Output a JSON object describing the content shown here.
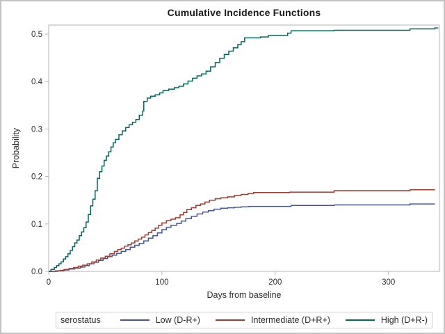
{
  "figure": {
    "title": "Cumulative Incidence Functions",
    "xlabel": "Days from baseline",
    "ylabel": "Probability"
  },
  "legend": {
    "title": "serostatus",
    "items": [
      {
        "label": "Low (D-R+)",
        "color": "#445694"
      },
      {
        "label": "Intermediate (D+R+)",
        "color": "#A23A2E"
      },
      {
        "label": "High (D+R-)",
        "color": "#01665E"
      }
    ]
  },
  "chart_data": {
    "type": "line",
    "subtype": "step-after",
    "title": "Cumulative Incidence Functions",
    "xlabel": "Days from baseline",
    "ylabel": "Probability",
    "xlim": [
      0,
      345
    ],
    "ylim": [
      0,
      0.519
    ],
    "xticks": [
      0,
      100,
      200,
      300
    ],
    "yticks": [
      0.0,
      0.1,
      0.2,
      0.3,
      0.4,
      0.5
    ],
    "grid": false,
    "legend_position": "bottom",
    "frame_color": "#b5b5b5",
    "tick_text_color": "#2b2b2b",
    "series": [
      {
        "name": "Low (D-R+)",
        "color": "#445694",
        "points": [
          [
            0,
            0
          ],
          [
            8,
            0.001
          ],
          [
            13,
            0.003
          ],
          [
            18,
            0.005
          ],
          [
            23,
            0.007
          ],
          [
            28,
            0.009
          ],
          [
            32,
            0.012
          ],
          [
            36,
            0.016
          ],
          [
            40,
            0.019
          ],
          [
            44,
            0.023
          ],
          [
            48,
            0.027
          ],
          [
            52,
            0.031
          ],
          [
            56,
            0.034
          ],
          [
            60,
            0.038
          ],
          [
            64,
            0.042
          ],
          [
            68,
            0.046
          ],
          [
            72,
            0.051
          ],
          [
            76,
            0.055
          ],
          [
            80,
            0.059
          ],
          [
            84,
            0.064
          ],
          [
            88,
            0.07
          ],
          [
            92,
            0.075
          ],
          [
            96,
            0.081
          ],
          [
            100,
            0.088
          ],
          [
            104,
            0.093
          ],
          [
            108,
            0.097
          ],
          [
            113,
            0.101
          ],
          [
            117,
            0.106
          ],
          [
            121,
            0.111
          ],
          [
            126,
            0.116
          ],
          [
            131,
            0.121
          ],
          [
            136,
            0.125
          ],
          [
            141,
            0.128
          ],
          [
            146,
            0.131
          ],
          [
            152,
            0.133
          ],
          [
            158,
            0.134
          ],
          [
            164,
            0.135
          ],
          [
            170,
            0.136
          ],
          [
            177,
            0.137
          ],
          [
            214,
            0.139
          ],
          [
            252,
            0.14
          ],
          [
            319,
            0.142
          ],
          [
            341,
            0.142
          ]
        ]
      },
      {
        "name": "Intermediate (D+R+)",
        "color": "#A23A2E",
        "points": [
          [
            0,
            0
          ],
          [
            6,
            0.001
          ],
          [
            10,
            0.002
          ],
          [
            14,
            0.004
          ],
          [
            18,
            0.006
          ],
          [
            22,
            0.008
          ],
          [
            26,
            0.011
          ],
          [
            30,
            0.013
          ],
          [
            34,
            0.016
          ],
          [
            38,
            0.02
          ],
          [
            42,
            0.024
          ],
          [
            46,
            0.028
          ],
          [
            50,
            0.032
          ],
          [
            54,
            0.037
          ],
          [
            58,
            0.042
          ],
          [
            61,
            0.046
          ],
          [
            64,
            0.049
          ],
          [
            67,
            0.053
          ],
          [
            70,
            0.056
          ],
          [
            73,
            0.06
          ],
          [
            76,
            0.064
          ],
          [
            79,
            0.068
          ],
          [
            82,
            0.072
          ],
          [
            85,
            0.077
          ],
          [
            88,
            0.082
          ],
          [
            91,
            0.086
          ],
          [
            94,
            0.091
          ],
          [
            97,
            0.097
          ],
          [
            100,
            0.102
          ],
          [
            104,
            0.107
          ],
          [
            108,
            0.11
          ],
          [
            112,
            0.113
          ],
          [
            116,
            0.119
          ],
          [
            119,
            0.124
          ],
          [
            122,
            0.13
          ],
          [
            126,
            0.134
          ],
          [
            130,
            0.139
          ],
          [
            134,
            0.142
          ],
          [
            138,
            0.146
          ],
          [
            142,
            0.15
          ],
          [
            147,
            0.153
          ],
          [
            152,
            0.155
          ],
          [
            158,
            0.157
          ],
          [
            164,
            0.16
          ],
          [
            170,
            0.162
          ],
          [
            176,
            0.164
          ],
          [
            181,
            0.166
          ],
          [
            213,
            0.167
          ],
          [
            252,
            0.17
          ],
          [
            319,
            0.172
          ],
          [
            341,
            0.172
          ]
        ]
      },
      {
        "name": "High (D+R-)",
        "color": "#01665E",
        "points": [
          [
            0,
            0
          ],
          [
            2,
            0.004
          ],
          [
            5,
            0.008
          ],
          [
            7,
            0.012
          ],
          [
            9,
            0.016
          ],
          [
            11,
            0.02
          ],
          [
            13,
            0.026
          ],
          [
            15,
            0.031
          ],
          [
            17,
            0.037
          ],
          [
            19,
            0.044
          ],
          [
            21,
            0.052
          ],
          [
            23,
            0.06
          ],
          [
            25,
            0.066
          ],
          [
            27,
            0.075
          ],
          [
            29,
            0.083
          ],
          [
            31,
            0.092
          ],
          [
            33,
            0.104
          ],
          [
            35,
            0.12
          ],
          [
            37,
            0.138
          ],
          [
            39,
            0.152
          ],
          [
            41,
            0.17
          ],
          [
            43,
            0.196
          ],
          [
            45,
            0.21
          ],
          [
            47,
            0.222
          ],
          [
            49,
            0.234
          ],
          [
            51,
            0.243
          ],
          [
            53,
            0.252
          ],
          [
            55,
            0.262
          ],
          [
            57,
            0.271
          ],
          [
            59,
            0.278
          ],
          [
            62,
            0.288
          ],
          [
            65,
            0.296
          ],
          [
            68,
            0.303
          ],
          [
            71,
            0.309
          ],
          [
            74,
            0.314
          ],
          [
            77,
            0.32
          ],
          [
            80,
            0.329
          ],
          [
            83,
            0.338
          ],
          [
            84,
            0.358
          ],
          [
            87,
            0.365
          ],
          [
            90,
            0.369
          ],
          [
            94,
            0.372
          ],
          [
            98,
            0.376
          ],
          [
            101,
            0.381
          ],
          [
            106,
            0.384
          ],
          [
            111,
            0.387
          ],
          [
            115,
            0.39
          ],
          [
            119,
            0.395
          ],
          [
            123,
            0.401
          ],
          [
            127,
            0.407
          ],
          [
            131,
            0.412
          ],
          [
            135,
            0.416
          ],
          [
            139,
            0.422
          ],
          [
            143,
            0.431
          ],
          [
            147,
            0.44
          ],
          [
            151,
            0.449
          ],
          [
            155,
            0.457
          ],
          [
            159,
            0.464
          ],
          [
            163,
            0.471
          ],
          [
            167,
            0.478
          ],
          [
            170,
            0.484
          ],
          [
            173,
            0.492
          ],
          [
            187,
            0.494
          ],
          [
            194,
            0.497
          ],
          [
            211,
            0.502
          ],
          [
            214,
            0.507
          ],
          [
            252,
            0.508
          ],
          [
            319,
            0.511
          ],
          [
            341,
            0.513
          ],
          [
            344,
            0.513
          ]
        ]
      }
    ]
  }
}
